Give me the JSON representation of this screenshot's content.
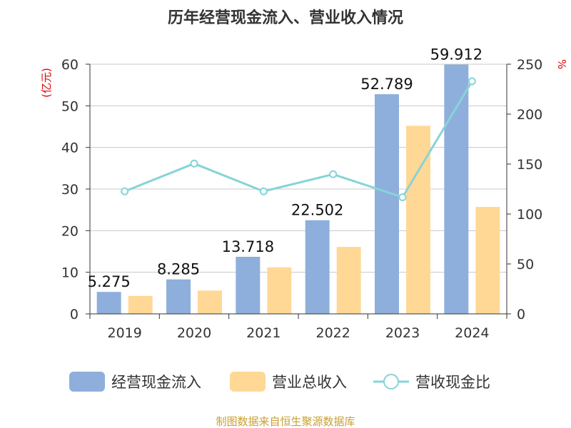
{
  "chart_data": {
    "type": "bar",
    "title": "历年经营现金流入、营业收入情况",
    "categories": [
      "2019",
      "2020",
      "2021",
      "2022",
      "2023",
      "2024"
    ],
    "y_left": {
      "unit": "(亿元)",
      "min": 0,
      "max": 60,
      "ticks": [
        0,
        10,
        20,
        30,
        40,
        50,
        60
      ]
    },
    "y_right": {
      "unit": "%",
      "min": 0,
      "max": 250,
      "ticks": [
        0,
        50,
        100,
        150,
        200,
        250
      ]
    },
    "series": [
      {
        "name": "经营现金流入",
        "kind": "bar",
        "axis": "left",
        "color": "#8eafdc",
        "values": [
          5.275,
          8.285,
          13.718,
          22.502,
          52.789,
          59.912
        ],
        "labels": [
          "5.275",
          "8.285",
          "13.718",
          "22.502",
          "52.789",
          "59.912"
        ]
      },
      {
        "name": "营业总收入",
        "kind": "bar",
        "axis": "left",
        "color": "#ffd896",
        "values": [
          4.3,
          5.6,
          11.2,
          16.1,
          45.2,
          25.7
        ]
      },
      {
        "name": "营收现金比",
        "kind": "line",
        "axis": "right",
        "color": "#86d4d6",
        "values": [
          122.7,
          150.5,
          122.7,
          139.8,
          116.8,
          232.9
        ]
      }
    ],
    "grid": true,
    "legend_position": "bottom"
  },
  "source": "制图数据来自恒生聚源数据库"
}
